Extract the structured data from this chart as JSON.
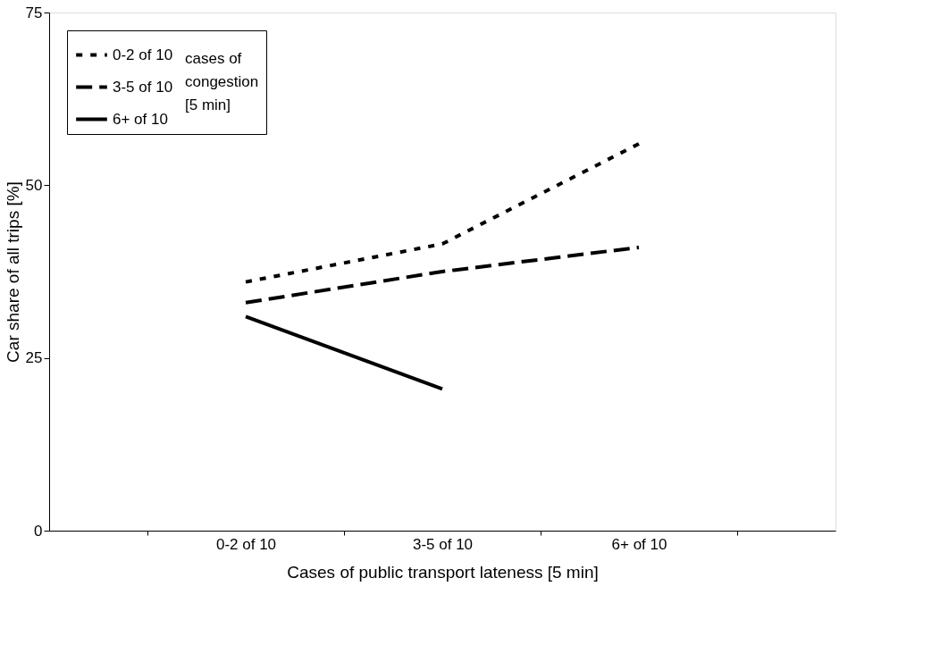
{
  "chart_data": {
    "type": "line",
    "xlabel": "Cases of public transport lateness [5 min]",
    "ylabel": "Car share of all trips [%]",
    "categories": [
      "0-2 of 10",
      "3-5 of 10",
      "6+ of 10"
    ],
    "legend_title": "cases of congestion [5 min]",
    "series": [
      {
        "name": "0-2 of 10",
        "color": "#000000",
        "line_style": "dotted",
        "values": [
          36,
          41.5,
          56
        ]
      },
      {
        "name": "3-5 of 10",
        "color": "#000000",
        "line_style": "dashed",
        "values": [
          33,
          37.5,
          41
        ]
      },
      {
        "name": "6+ of 10",
        "color": "#000000",
        "line_style": "solid",
        "values": [
          31,
          20.5,
          null
        ]
      }
    ],
    "ylim": [
      0,
      75
    ],
    "yticks": [
      0,
      25,
      50,
      75
    ],
    "grid": false,
    "legend": "top left",
    "marker": "none"
  }
}
